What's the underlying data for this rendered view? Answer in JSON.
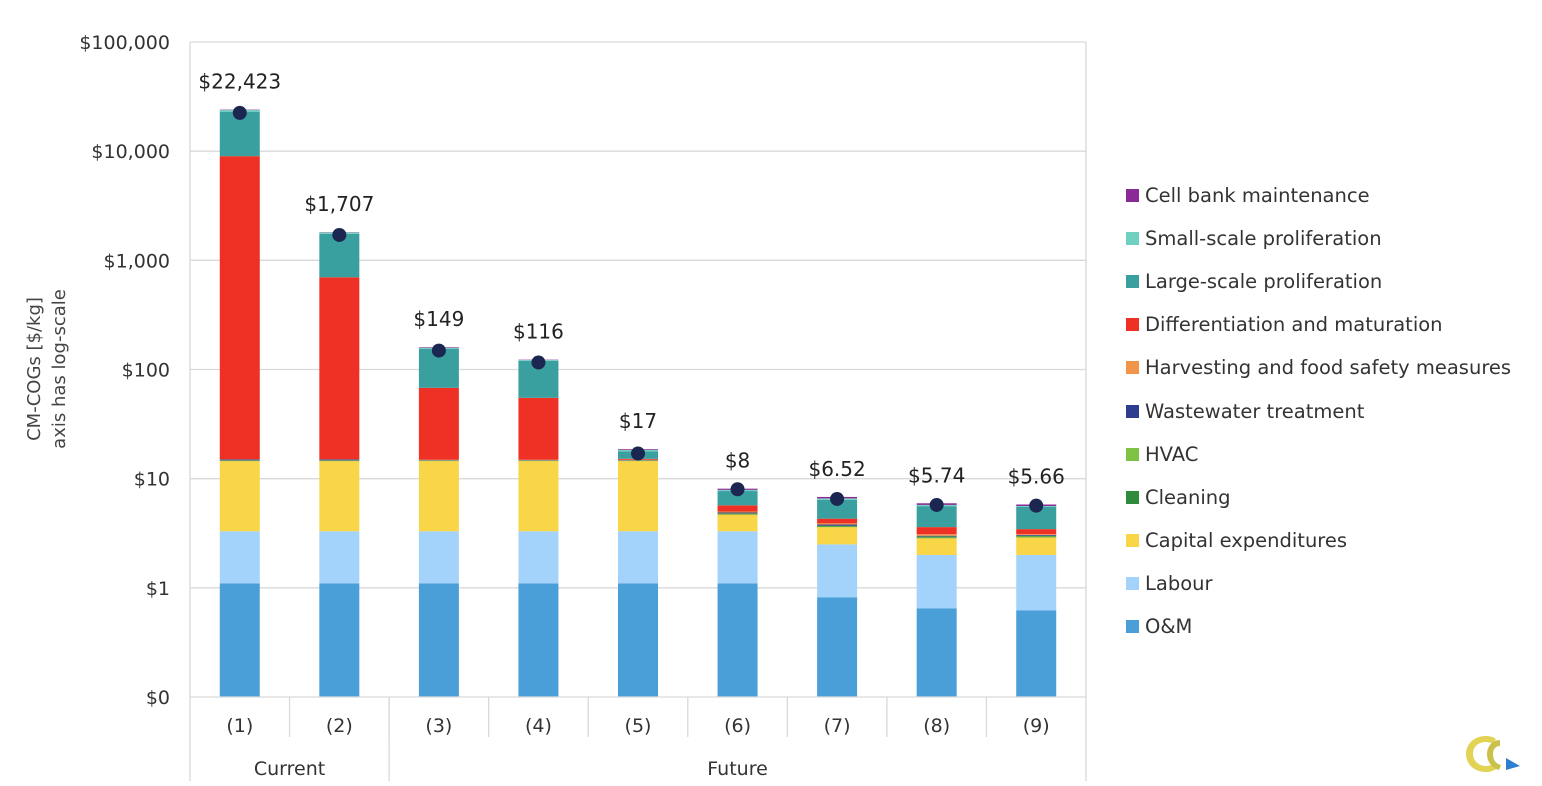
{
  "chart_data": {
    "type": "bar",
    "stacked": true,
    "ylabel_lines": [
      "CM-COGs [$/kg]",
      "axis has log-scale"
    ],
    "yscale": "log",
    "ylim": [
      0.1,
      100000
    ],
    "y_tick_values": [
      0.1,
      1,
      10,
      100,
      1000,
      10000,
      100000
    ],
    "y_tick_labels": [
      "$0",
      "$1",
      "$10",
      "$100",
      "$1,000",
      "$10,000",
      "$100,000"
    ],
    "grid": true,
    "legend_position": "right",
    "categories": [
      "(1)",
      "(2)",
      "(3)",
      "(4)",
      "(5)",
      "(6)",
      "(7)",
      "(8)",
      "(9)"
    ],
    "groups": [
      {
        "label": "Current",
        "categories": [
          "(1)",
          "(2)"
        ]
      },
      {
        "label": "Future",
        "categories": [
          "(3)",
          "(4)",
          "(5)",
          "(6)",
          "(7)",
          "(8)",
          "(9)"
        ]
      }
    ],
    "totals": [
      22423,
      1707,
      149,
      116,
      17,
      8,
      6.52,
      5.74,
      5.66
    ],
    "total_labels": [
      "$22,423",
      "$1,707",
      "$149",
      "$116",
      "$17",
      "$8",
      "$6.52",
      "$5.74",
      "$5.66"
    ],
    "series_cumulative": [
      {
        "name": "O&M",
        "color": "#4a9fd8",
        "top": [
          1.1,
          1.1,
          1.1,
          1.1,
          1.1,
          1.1,
          0.82,
          0.65,
          0.62
        ]
      },
      {
        "name": "Labour",
        "color": "#a3d3fa",
        "top": [
          3.3,
          3.3,
          3.3,
          3.3,
          3.3,
          3.3,
          2.5,
          2.0,
          2.0
        ]
      },
      {
        "name": "Capital expenditures",
        "color": "#f9d648",
        "top": [
          14.5,
          14.5,
          14.5,
          14.5,
          14.5,
          4.7,
          3.6,
          2.85,
          2.9
        ]
      },
      {
        "name": "Cleaning",
        "color": "#2e8b3c",
        "top": [
          14.6,
          14.6,
          14.6,
          14.6,
          14.6,
          4.75,
          3.65,
          2.9,
          2.95
        ]
      },
      {
        "name": "HVAC",
        "color": "#7dc242",
        "top": [
          14.7,
          14.7,
          14.7,
          14.7,
          14.7,
          4.8,
          3.7,
          2.95,
          3.0
        ]
      },
      {
        "name": "Wastewater treatment",
        "color": "#2e3d8f",
        "top": [
          15.0,
          15.0,
          14.8,
          14.8,
          14.8,
          4.9,
          3.8,
          3.0,
          3.05
        ]
      },
      {
        "name": "Harvesting and food safety measures",
        "color": "#f0954a",
        "top": [
          15.1,
          15.1,
          14.9,
          14.9,
          14.9,
          5.0,
          3.9,
          3.1,
          3.1
        ]
      },
      {
        "name": "Differentiation and maturation",
        "color": "#ee3124",
        "top": [
          9000,
          700,
          68,
          55,
          15.2,
          5.7,
          4.3,
          3.6,
          3.45
        ]
      },
      {
        "name": "Large-scale proliferation",
        "color": "#3a9f9f",
        "top": [
          23000,
          1750,
          155,
          120,
          17.8,
          7.7,
          6.4,
          5.6,
          5.5
        ]
      },
      {
        "name": "Small-scale proliferation",
        "color": "#6fd0c0",
        "top": [
          23800,
          1800,
          158,
          122,
          18.3,
          7.9,
          6.6,
          5.75,
          5.62
        ]
      },
      {
        "name": "Cell bank maintenance",
        "color": "#8a2a96",
        "top": [
          24000,
          1810,
          160,
          123,
          18.6,
          8.1,
          6.8,
          5.95,
          5.8
        ]
      }
    ]
  },
  "legend_items": [
    {
      "label": "Cell bank maintenance",
      "color": "#8a2a96"
    },
    {
      "label": "Small-scale proliferation",
      "color": "#6fd0c0"
    },
    {
      "label": "Large-scale proliferation",
      "color": "#3a9f9f"
    },
    {
      "label": "Differentiation and maturation",
      "color": "#ee3124"
    },
    {
      "label": "Harvesting and food safety measures",
      "color": "#f0954a"
    },
    {
      "label": "Wastewater treatment",
      "color": "#2e3d8f"
    },
    {
      "label": "HVAC",
      "color": "#7dc242"
    },
    {
      "label": "Cleaning",
      "color": "#2e8b3c"
    },
    {
      "label": "Capital expenditures",
      "color": "#f9d648"
    },
    {
      "label": "Labour",
      "color": "#a3d3fa"
    },
    {
      "label": "O&M",
      "color": "#4a9fd8"
    }
  ],
  "logo": {
    "icon": "organization-logo-icon",
    "colors": [
      "#e3d354",
      "#2f7fd0"
    ]
  }
}
